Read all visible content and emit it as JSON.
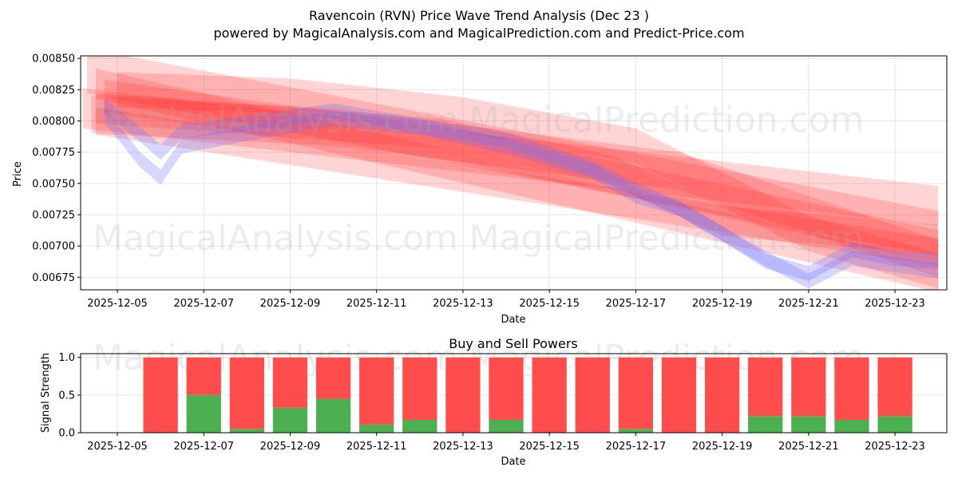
{
  "title_line1": "Ravencoin (RVN) Price Wave Trend Analysis (Dec 23 )",
  "title_line2": "powered by MagicalAnalysis.com and MagicalPrediction.com and Predict-Price.com",
  "watermarks": [
    "MagicalAnalysis.com",
    "MagicalPrediction.com"
  ],
  "colors": {
    "red": "#ff2a2a",
    "blue": "#6a6aff",
    "buy": "#4caf50",
    "sell": "#ff4d4d",
    "grid": "#e6e6e6"
  },
  "chart_data": [
    {
      "type": "area",
      "title": "",
      "xlabel": "Date",
      "ylabel": "Price",
      "grid": true,
      "xlim": [
        -0.85,
        19.2
      ],
      "ylim": [
        0.00665,
        0.00852
      ],
      "x_ticks": [
        0,
        2,
        4,
        6,
        8,
        10,
        12,
        14,
        16,
        18
      ],
      "x_tick_labels": [
        "2025-12-05",
        "2025-12-07",
        "2025-12-09",
        "2025-12-11",
        "2025-12-13",
        "2025-12-15",
        "2025-12-17",
        "2025-12-19",
        "2025-12-21",
        "2025-12-23"
      ],
      "y_ticks": [
        0.00675,
        0.007,
        0.00725,
        0.0075,
        0.00775,
        0.008,
        0.00825,
        0.0085
      ],
      "y_tick_labels": [
        "0.00675",
        "0.00700",
        "0.00725",
        "0.00750",
        "0.00775",
        "0.00800",
        "0.00825",
        "0.00850"
      ],
      "x_unit_note": "days since 2025-12-05",
      "red_bands": [
        {
          "x": [
            -0.7,
            19.0
          ],
          "y": [
            0.0084,
            0.0071
          ],
          "w": 0.00018
        },
        {
          "x": [
            -0.5,
            19.0
          ],
          "y": [
            0.0083,
            0.00675
          ],
          "w": 0.00012
        },
        {
          "x": [
            -0.8,
            19.0
          ],
          "y": [
            0.0081,
            0.00732
          ],
          "w": 0.00016
        },
        {
          "x": [
            -0.5,
            19.0
          ],
          "y": [
            0.008,
            0.00695
          ],
          "w": 0.00011
        },
        {
          "x": [
            -0.3,
            8.0,
            19.0
          ],
          "y": [
            0.0082,
            0.0078,
            0.007
          ],
          "w": 0.00013
        },
        {
          "x": [
            -0.6,
            5.0,
            13.0,
            19.0
          ],
          "y": [
            0.00805,
            0.00795,
            0.0076,
            0.0069
          ],
          "w": 0.00015
        },
        {
          "x": [
            0.0,
            4.0,
            8.0,
            12.0,
            16.0,
            19.0
          ],
          "y": [
            0.00825,
            0.0082,
            0.00805,
            0.0078,
            0.0071,
            0.0068
          ],
          "w": 0.00014
        },
        {
          "x": [
            -0.5,
            3.5,
            7.5,
            11.5,
            14.0,
            19.0
          ],
          "y": [
            0.0081,
            0.008,
            0.0079,
            0.0076,
            0.0072,
            0.00705
          ],
          "w": 0.00012
        }
      ],
      "blue_bands": [
        {
          "x": [
            -0.3,
            0.5,
            1.0,
            1.5,
            3.0,
            5.0,
            7.0,
            9.0,
            11.0,
            12.0,
            13.0,
            14.0,
            15.0,
            16.0,
            17.0,
            18.0,
            19.0
          ],
          "y": [
            0.00805,
            0.0077,
            0.00755,
            0.0078,
            0.0079,
            0.00802,
            0.00795,
            0.0078,
            0.0076,
            0.0074,
            0.0073,
            0.0071,
            0.0069,
            0.00672,
            0.0069,
            0.00685,
            0.0068
          ],
          "w": 6e-05
        },
        {
          "x": [
            -0.3,
            0.5,
            1.0,
            1.5,
            3.0,
            5.0,
            7.0,
            9.0,
            11.0,
            12.0,
            13.0,
            14.0,
            15.0,
            16.0,
            17.0,
            18.0,
            19.0
          ],
          "y": [
            0.00812,
            0.0079,
            0.00775,
            0.00792,
            0.00798,
            0.00808,
            0.00796,
            0.00785,
            0.00762,
            0.00745,
            0.0073,
            0.0071,
            0.00688,
            0.00678,
            0.00697,
            0.0069,
            0.00688
          ],
          "w": 6e-05
        }
      ]
    },
    {
      "type": "bar",
      "title": "Buy and Sell Powers",
      "xlabel": "Date",
      "ylabel": "Signal Strength",
      "grid": true,
      "xlim": [
        -0.85,
        19.2
      ],
      "ylim": [
        0,
        1.05
      ],
      "y_ticks": [
        0,
        0.5,
        1
      ],
      "y_tick_labels": [
        "0.0",
        "0.5",
        "1.0"
      ],
      "x_ticks": [
        0,
        2,
        4,
        6,
        8,
        10,
        12,
        14,
        16,
        18
      ],
      "x_tick_labels": [
        "2025-12-05",
        "2025-12-07",
        "2025-12-09",
        "2025-12-11",
        "2025-12-13",
        "2025-12-15",
        "2025-12-17",
        "2025-12-19",
        "2025-12-21",
        "2025-12-23"
      ],
      "categories": [
        "2025-12-06",
        "2025-12-07",
        "2025-12-08",
        "2025-12-09",
        "2025-12-10",
        "2025-12-11",
        "2025-12-12",
        "2025-12-13",
        "2025-12-14",
        "2025-12-15",
        "2025-12-16",
        "2025-12-17",
        "2025-12-18",
        "2025-12-19",
        "2025-12-20",
        "2025-12-21",
        "2025-12-22",
        "2025-12-23"
      ],
      "series": [
        {
          "name": "Buy",
          "color": "#4caf50",
          "values": [
            0,
            0.5,
            0.05,
            0.33,
            0.45,
            0.11,
            0.17,
            0,
            0.17,
            0,
            0,
            0.05,
            0,
            0,
            0.22,
            0.22,
            0.17,
            0.22
          ]
        },
        {
          "name": "Sell",
          "color": "#ff4d4d",
          "values": [
            1,
            0.5,
            0.95,
            0.67,
            0.55,
            0.89,
            0.83,
            1,
            0.83,
            1,
            1,
            0.95,
            1,
            1,
            0.78,
            0.78,
            0.83,
            0.78
          ]
        }
      ]
    }
  ]
}
